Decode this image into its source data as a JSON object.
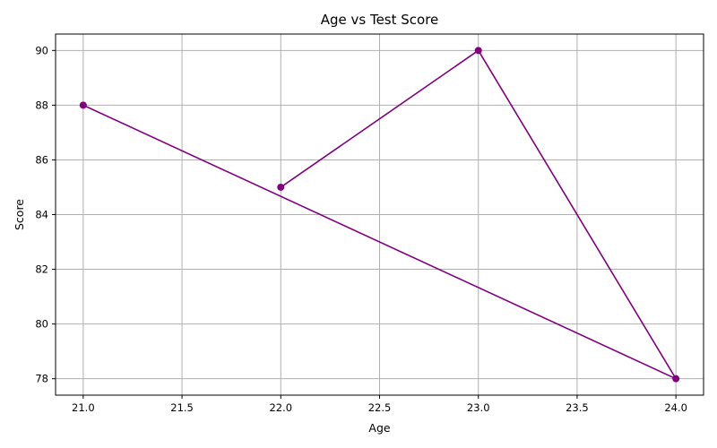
{
  "chart_data": {
    "type": "line",
    "title": "Age vs Test Score",
    "xlabel": "Age",
    "ylabel": "Score",
    "xlim": [
      20.86,
      24.14
    ],
    "ylim": [
      77.4,
      90.6
    ],
    "xticks": [
      "21.0",
      "21.5",
      "22.0",
      "22.5",
      "23.0",
      "23.5",
      "24.0"
    ],
    "yticks": [
      "78",
      "80",
      "82",
      "84",
      "86",
      "88",
      "90"
    ],
    "grid": true,
    "series": [
      {
        "color": "#800080",
        "marker": "circle",
        "points": [
          {
            "x": 22,
            "y": 85
          },
          {
            "x": 23,
            "y": 90
          },
          {
            "x": 24,
            "y": 78
          },
          {
            "x": 21,
            "y": 88
          }
        ]
      }
    ]
  }
}
